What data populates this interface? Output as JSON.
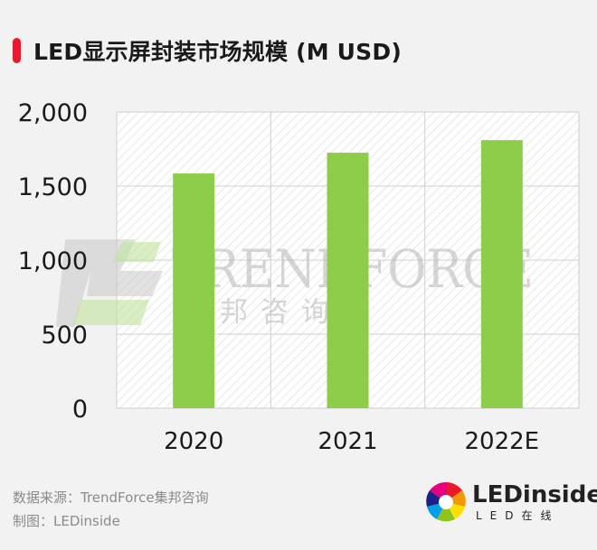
{
  "title": "LED显示屏封装市场规模 (M USD)",
  "chart_data": {
    "type": "bar",
    "categories": [
      "2020",
      "2021",
      "2022E"
    ],
    "values": [
      1585,
      1725,
      1810
    ],
    "ylim": [
      0,
      2000
    ],
    "yticks": [
      "0",
      "500",
      "1,000",
      "1,500",
      "2,000"
    ],
    "ytick_values": [
      0,
      500,
      1000,
      1500,
      2000
    ],
    "grid": true,
    "bar_color": "#8dcd4a"
  },
  "watermark": {
    "name": "TRENDFORCE",
    "sub": "集邦咨询"
  },
  "footer": {
    "source_line": "数据来源：TrendForce集邦咨询",
    "credit_line": "制图：LEDinside"
  },
  "logo": {
    "name": "LEDinside",
    "sub": "LED在线"
  }
}
